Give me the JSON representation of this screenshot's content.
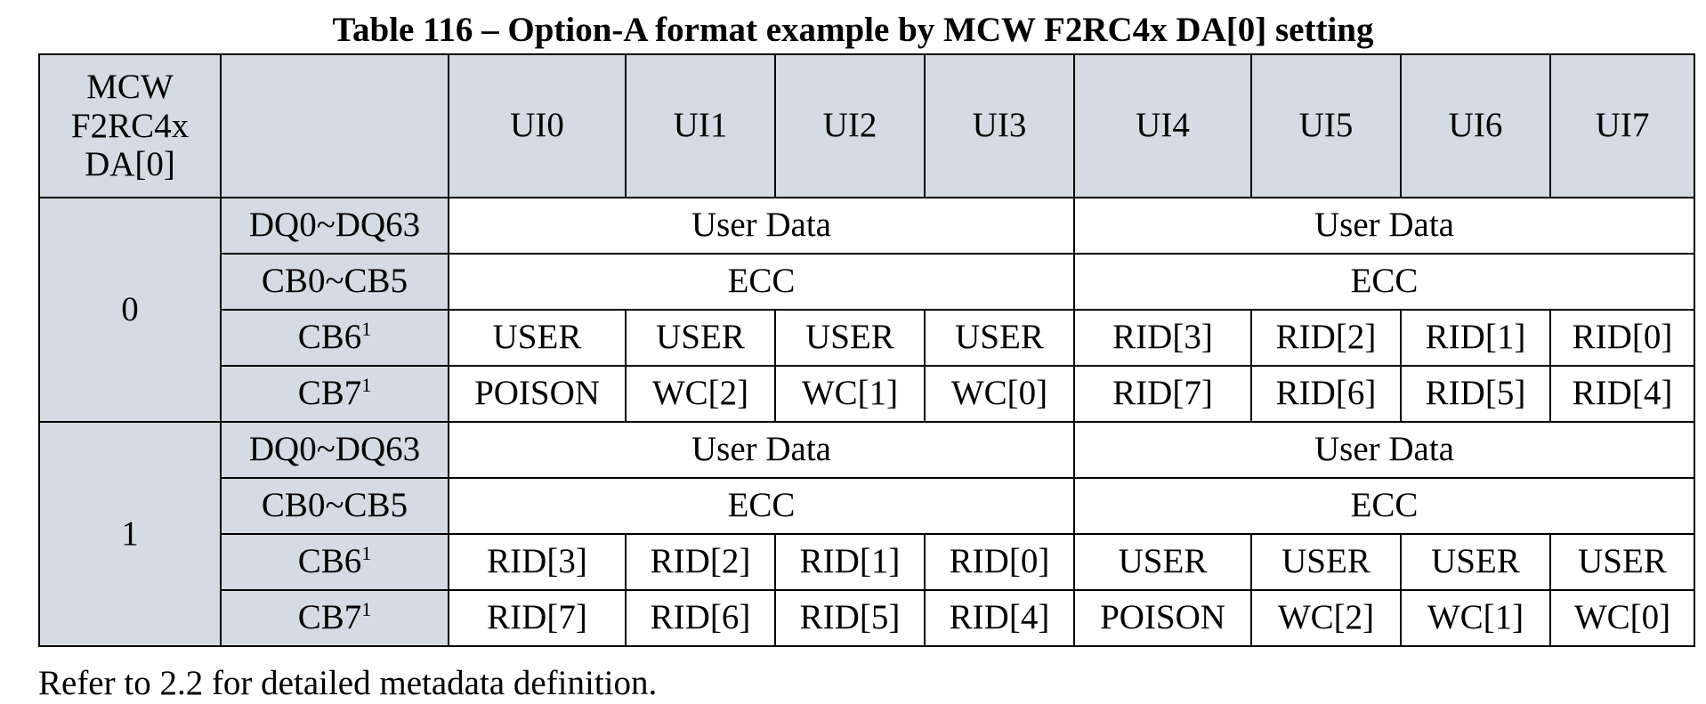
{
  "title": "Table 116 – Option-A format example by MCW F2RC4x DA[0] setting",
  "header": {
    "mode": "MCW F2RC4x DA[0]",
    "signal": "",
    "uis": [
      "UI0",
      "UI1",
      "UI2",
      "UI3",
      "UI4",
      "UI5",
      "UI6",
      "UI7"
    ]
  },
  "groups": [
    {
      "mode": "0",
      "rows": {
        "dq": {
          "label": "DQ0~DQ63",
          "first_half": "User Data",
          "second_half": "User Data"
        },
        "cb05": {
          "label": "CB0~CB5",
          "first_half": "ECC",
          "second_half": "ECC"
        },
        "cb6": {
          "label": "CB6",
          "sup": "1",
          "cells": [
            "USER",
            "USER",
            "USER",
            "USER",
            "RID[3]",
            "RID[2]",
            "RID[1]",
            "RID[0]"
          ]
        },
        "cb7": {
          "label": "CB7",
          "sup": "1",
          "cells": [
            "POISON",
            "WC[2]",
            "WC[1]",
            "WC[0]",
            "RID[7]",
            "RID[6]",
            "RID[5]",
            "RID[4]"
          ]
        }
      }
    },
    {
      "mode": "1",
      "rows": {
        "dq": {
          "label": "DQ0~DQ63",
          "first_half": "User Data",
          "second_half": "User Data"
        },
        "cb05": {
          "label": "CB0~CB5",
          "first_half": "ECC",
          "second_half": "ECC"
        },
        "cb6": {
          "label": "CB6",
          "sup": "1",
          "cells": [
            "RID[3]",
            "RID[2]",
            "RID[1]",
            "RID[0]",
            "USER",
            "USER",
            "USER",
            "USER"
          ]
        },
        "cb7": {
          "label": "CB7",
          "sup": "1",
          "cells": [
            "RID[7]",
            "RID[6]",
            "RID[5]",
            "RID[4]",
            "POISON",
            "WC[2]",
            "WC[1]",
            "WC[0]"
          ]
        }
      }
    }
  ],
  "note": "Refer to 2.2 for detailed metadata definition."
}
